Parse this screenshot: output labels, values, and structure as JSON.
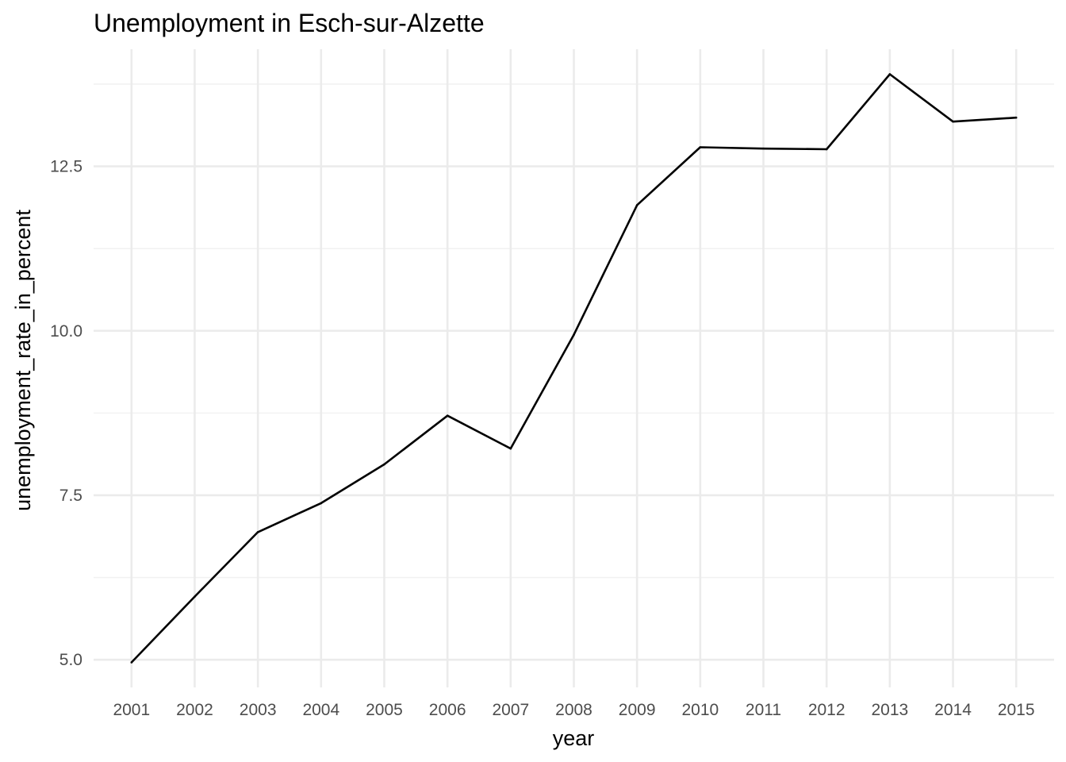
{
  "chart_data": {
    "type": "line",
    "title": "Unemployment in Esch-sur-Alzette",
    "xlabel": "year",
    "ylabel": "unemployment_rate_in_percent",
    "x": [
      2001,
      2002,
      2003,
      2004,
      2005,
      2006,
      2007,
      2008,
      2009,
      2010,
      2011,
      2012,
      2013,
      2014,
      2015
    ],
    "series": [
      {
        "values": [
          4.96,
          5.96,
          6.94,
          7.38,
          7.97,
          8.71,
          8.21,
          9.94,
          11.91,
          12.79,
          12.77,
          12.76,
          13.9,
          13.18,
          13.24
        ],
        "color": "#000000"
      }
    ],
    "x_ticks": [
      "2001",
      "2002",
      "2003",
      "2004",
      "2005",
      "2006",
      "2007",
      "2008",
      "2009",
      "2010",
      "2011",
      "2012",
      "2013",
      "2014",
      "2015"
    ],
    "y_ticks": [
      "5.0",
      "7.5",
      "10.0",
      "12.5"
    ],
    "y_tick_values": [
      5.0,
      7.5,
      10.0,
      12.5
    ],
    "y_minor_values": [
      6.25,
      8.75,
      11.25,
      13.75
    ],
    "xlim": [
      2000.4,
      2015.6
    ],
    "ylim": [
      4.58,
      14.28
    ],
    "grid": true,
    "legend": "none"
  }
}
